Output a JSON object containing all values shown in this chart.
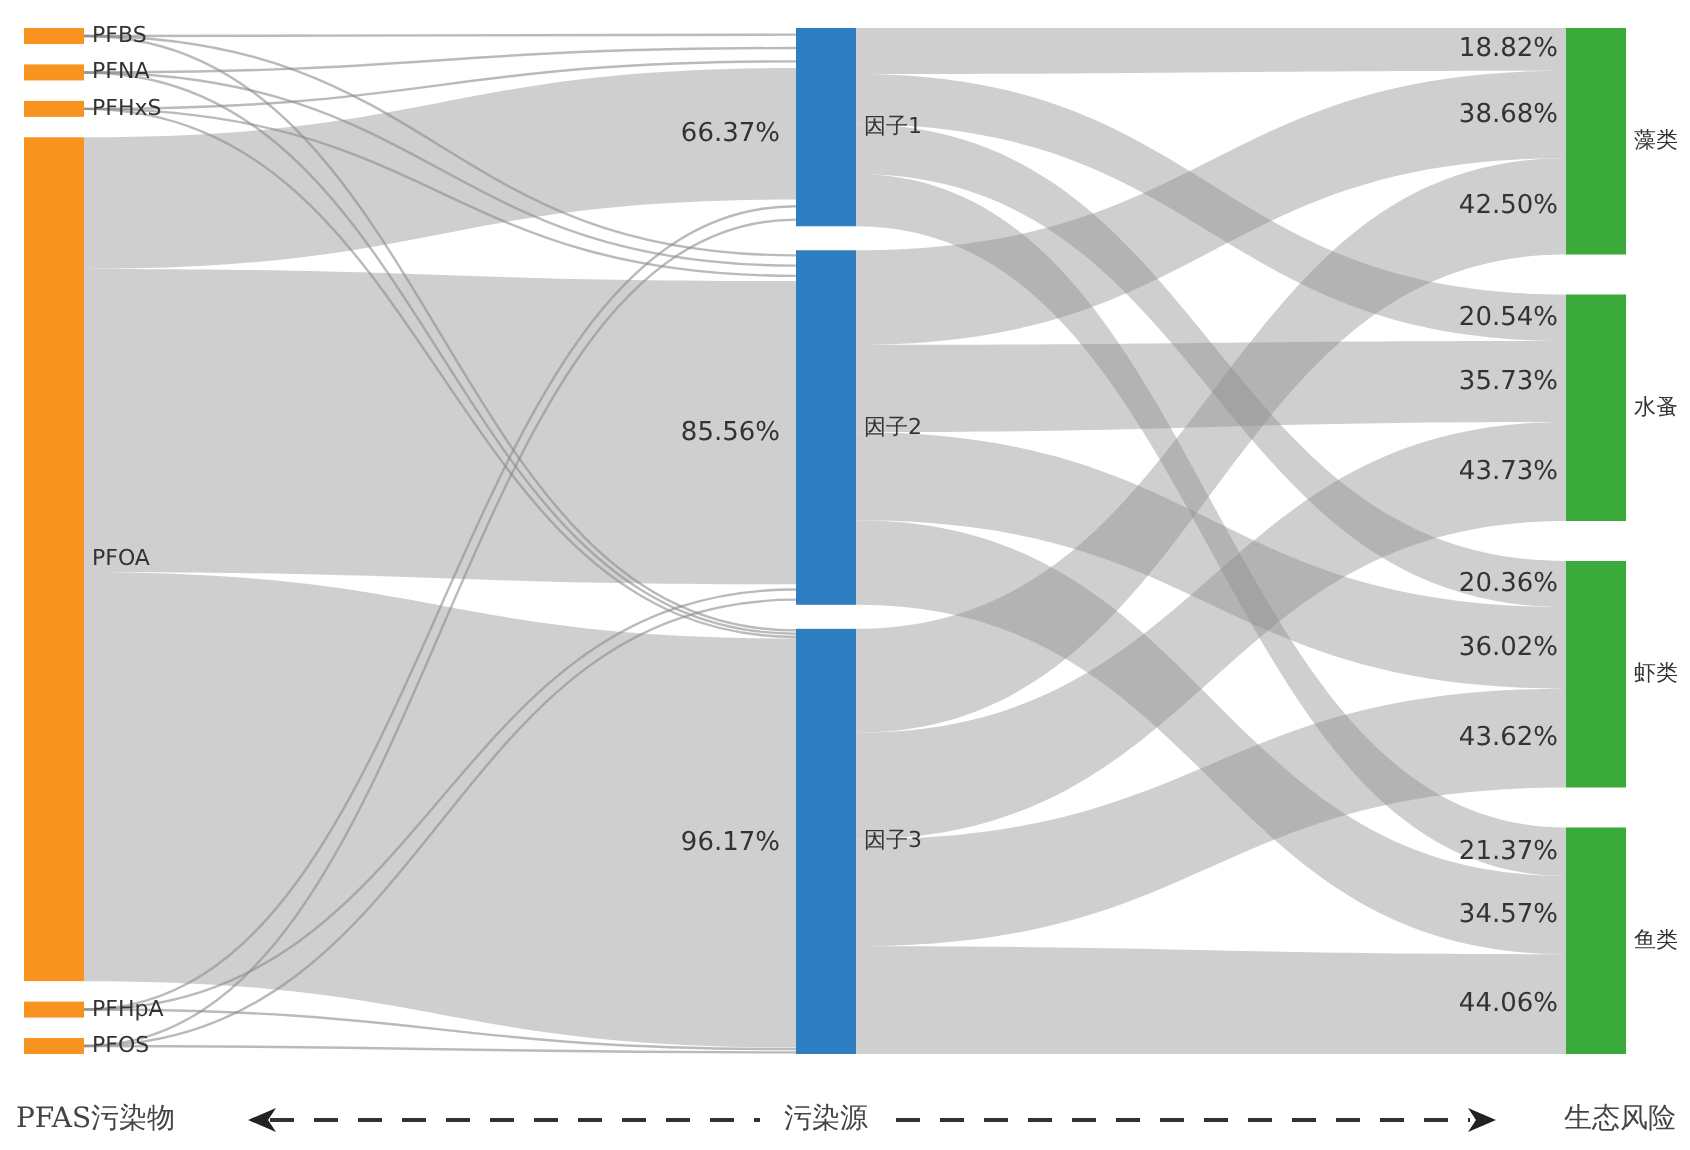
{
  "chart_data": {
    "type": "other",
    "categories": [
      "PFBS",
      "PFNA",
      "PFHxS",
      "PFOA",
      "PFHpA",
      "PFOS",
      "因子1",
      "因子2",
      "因子3",
      "藻类",
      "水蚤",
      "虾类",
      "鱼类"
    ],
    "colors": [
      "#f7931e",
      "#f7931e",
      "#f7931e",
      "#f7931e",
      "#f7931e",
      "#f7931e",
      "#2f7ec1",
      "#2f7ec1",
      "#2f7ec1",
      "#3aaa3a",
      "#3aaa3a",
      "#3aaa3a",
      "#3aaa3a"
    ],
    "series": [
      {
        "color": "#8c8c8c",
        "values": [
          null,
          null,
          null,
          null,
          null,
          null,
          null,
          null,
          null,
          null,
          null,
          null,
          null
        ]
      },
      {
        "color": "#8c8c8c",
        "values": [
          null,
          null,
          null,
          null,
          null,
          null,
          null,
          null,
          null,
          null,
          null,
          null,
          null
        ]
      },
      {
        "color": "#8c8c8c",
        "values": [
          null,
          null,
          null,
          null,
          null,
          null,
          null,
          null,
          null,
          null,
          null,
          null,
          null
        ]
      },
      {
        "color": "#8c8c8c",
        "values": [
          null,
          null,
          null,
          null,
          null,
          null,
          66.37,
          85.56,
          96.17,
          null,
          null,
          null,
          null
        ],
        "value_labels": [
          null,
          null,
          null,
          null,
          null,
          null,
          "66.37%",
          "85.56%",
          "96.17%",
          null,
          null,
          null,
          null
        ]
      },
      {
        "color": "#8c8c8c",
        "values": [
          null,
          null,
          null,
          null,
          null,
          null,
          null,
          null,
          null,
          null,
          null,
          null,
          null
        ]
      },
      {
        "color": "#8c8c8c",
        "values": [
          null,
          null,
          null,
          null,
          null,
          null,
          null,
          null,
          null,
          null,
          null,
          null,
          null
        ]
      },
      {
        "color": "#8c8c8c",
        "values": [
          null,
          null,
          null,
          null,
          null,
          null,
          null,
          null,
          null,
          18.82,
          20.54,
          20.36,
          21.37
        ],
        "value_labels": [
          null,
          null,
          null,
          null,
          null,
          null,
          null,
          null,
          null,
          "18.82%",
          "20.54%",
          "20.36%",
          "21.37%"
        ]
      },
      {
        "color": "#8c8c8c",
        "values": [
          null,
          null,
          null,
          null,
          null,
          null,
          null,
          null,
          null,
          38.68,
          35.73,
          36.02,
          34.57
        ],
        "value_labels": [
          null,
          null,
          null,
          null,
          null,
          null,
          null,
          null,
          null,
          "38.68%",
          "35.73%",
          "36.02%",
          "34.57%"
        ]
      },
      {
        "color": "#8c8c8c",
        "values": [
          null,
          null,
          null,
          null,
          null,
          null,
          null,
          null,
          null,
          42.5,
          43.73,
          43.62,
          44.06
        ],
        "value_labels": [
          null,
          null,
          null,
          null,
          null,
          null,
          null,
          null,
          null,
          "42.50%",
          "43.73%",
          "43.62%",
          "44.06%"
        ]
      }
    ],
    "annotations": [
      "PFAS污染物",
      "污染源",
      "生态风险"
    ]
  }
}
